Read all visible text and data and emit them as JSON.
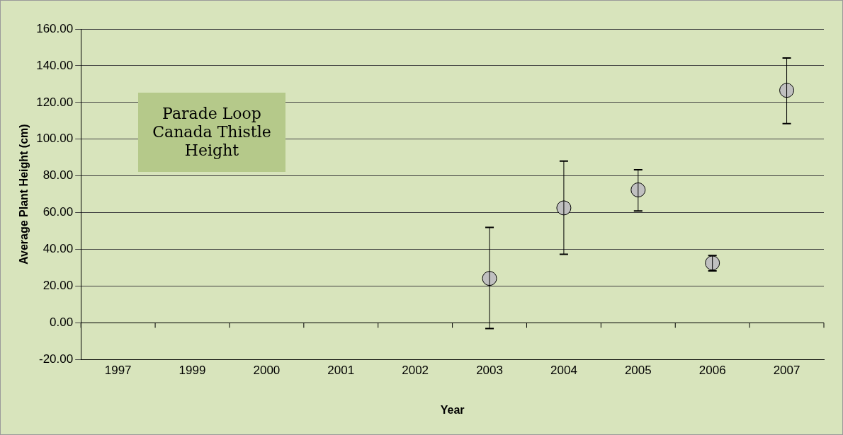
{
  "chart_data": {
    "type": "scatter",
    "title": "Parade Loop Canada Thistle Height",
    "xlabel": "Year",
    "ylabel": "Average Plant Height (cm)",
    "categories": [
      "1997",
      "1999",
      "2000",
      "2001",
      "2002",
      "2003",
      "2004",
      "2005",
      "2006",
      "2007"
    ],
    "values": [
      null,
      null,
      null,
      null,
      null,
      24.2,
      62.6,
      72.4,
      32.6,
      126.6
    ],
    "errors": [
      null,
      null,
      null,
      null,
      null,
      [
        -3.1,
        52.0
      ],
      [
        37.3,
        88.1
      ],
      [
        60.9,
        83.4
      ],
      [
        28.3,
        36.7
      ],
      [
        108.5,
        144.2
      ]
    ],
    "color": "#c0c0c0",
    "marker": "circle",
    "ylim": [
      -20,
      160
    ],
    "yticks": [
      {
        "value": -20,
        "label": "-20.00"
      },
      {
        "value": 0,
        "label": "0.00"
      },
      {
        "value": 20,
        "label": "20.00"
      },
      {
        "value": 40,
        "label": "40.00"
      },
      {
        "value": 60,
        "label": "60.00"
      },
      {
        "value": 80,
        "label": "80.00"
      },
      {
        "value": 100,
        "label": "100.00"
      },
      {
        "value": 120,
        "label": "120.00"
      },
      {
        "value": 140,
        "label": "140.00"
      },
      {
        "value": 160,
        "label": "160.00"
      }
    ],
    "grid": "y",
    "legend": false
  }
}
